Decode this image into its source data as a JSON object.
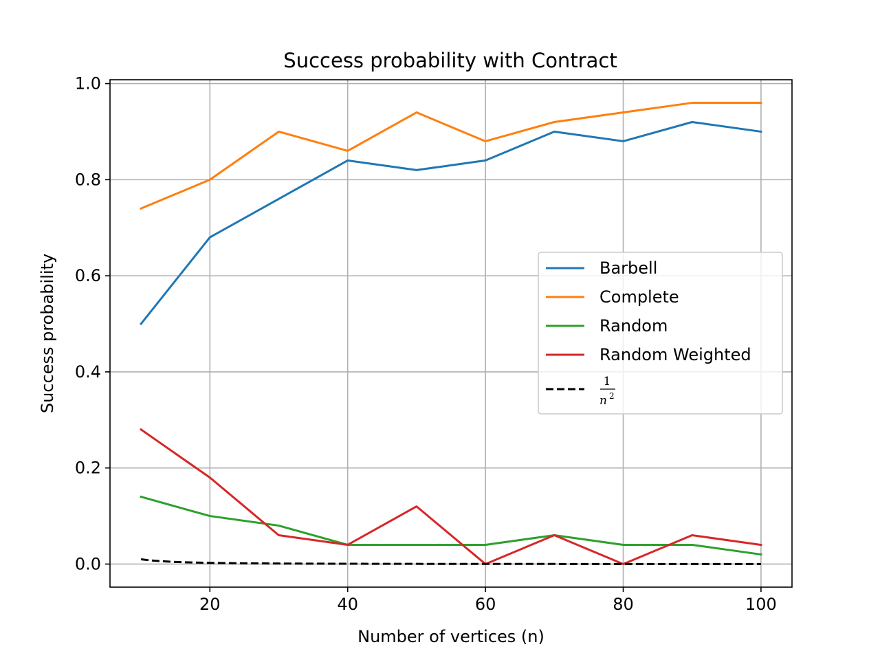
{
  "chart_data": {
    "type": "line",
    "title": "Success probability with Contract",
    "xlabel": "Number of vertices (n)",
    "ylabel": "Success probability",
    "x": [
      10,
      20,
      30,
      40,
      50,
      60,
      70,
      80,
      90,
      100
    ],
    "xlim": [
      5.5,
      104.5
    ],
    "ylim": [
      -0.048,
      1.008
    ],
    "xticks": [
      20,
      40,
      60,
      80,
      100
    ],
    "xtick_labels": [
      "20",
      "40",
      "60",
      "80",
      "100"
    ],
    "yticks": [
      0.0,
      0.2,
      0.4,
      0.6,
      0.8,
      1.0
    ],
    "ytick_labels": [
      "0.0",
      "0.2",
      "0.4",
      "0.6",
      "0.8",
      "1.0"
    ],
    "grid": true,
    "legend_position": "center-right",
    "series": [
      {
        "name": "Barbell",
        "color": "#1f77b4",
        "dash": "solid",
        "values": [
          0.5,
          0.68,
          0.76,
          0.84,
          0.82,
          0.84,
          0.9,
          0.88,
          0.92,
          0.9
        ]
      },
      {
        "name": "Complete",
        "color": "#ff7f0e",
        "dash": "solid",
        "values": [
          0.74,
          0.8,
          0.9,
          0.86,
          0.94,
          0.88,
          0.92,
          0.94,
          0.96,
          0.96
        ]
      },
      {
        "name": "Random",
        "color": "#2ca02c",
        "dash": "solid",
        "values": [
          0.14,
          0.1,
          0.08,
          0.04,
          0.04,
          0.04,
          0.06,
          0.04,
          0.04,
          0.02
        ]
      },
      {
        "name": "Random Weighted",
        "color": "#d62728",
        "dash": "solid",
        "values": [
          0.28,
          0.18,
          0.06,
          0.04,
          0.12,
          0.0,
          0.06,
          0.0,
          0.06,
          0.04
        ]
      },
      {
        "name_numerator": "1",
        "name_denominator": "n",
        "name_exponent": "2",
        "color": "#000000",
        "dash": "dashed",
        "formula": "1/n^2"
      }
    ]
  }
}
